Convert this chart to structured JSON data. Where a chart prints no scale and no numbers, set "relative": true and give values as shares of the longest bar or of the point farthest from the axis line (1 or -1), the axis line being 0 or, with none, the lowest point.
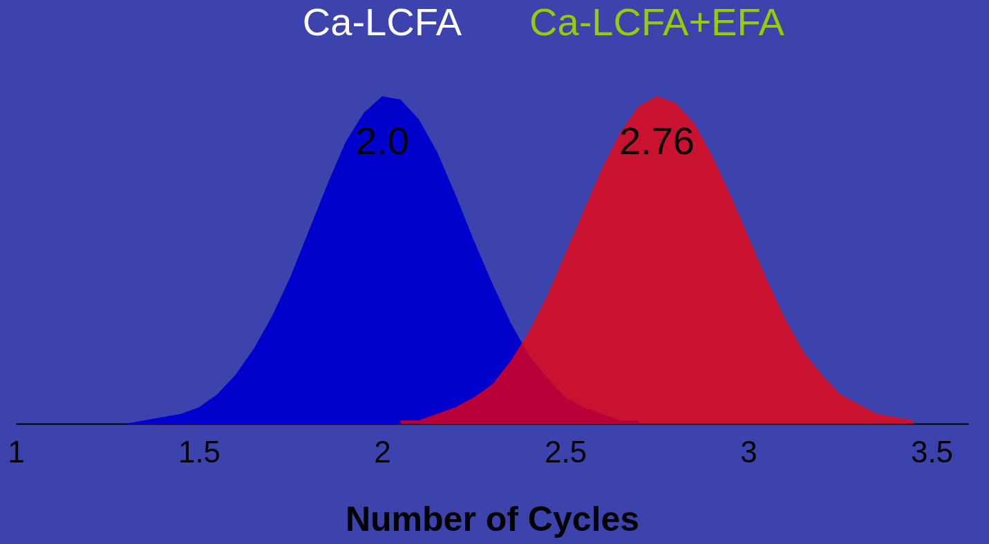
{
  "chart_data": {
    "type": "area",
    "relative": true,
    "xlabel": "Number of Cycles",
    "xlim": [
      1,
      3.6
    ],
    "xticks": [
      1,
      1.5,
      2,
      2.5,
      3,
      3.5
    ],
    "series": [
      {
        "name": "Ca-LCFA",
        "color": "#0000cc",
        "x": [
          1.25,
          1.3,
          1.35,
          1.4,
          1.45,
          1.5,
          1.55,
          1.6,
          1.65,
          1.7,
          1.75,
          1.8,
          1.85,
          1.9,
          1.95,
          2.0,
          2.05,
          2.1,
          2.15,
          2.2,
          2.25,
          2.3,
          2.35,
          2.4,
          2.45,
          2.5,
          2.55,
          2.6,
          2.65,
          2.7
        ],
        "values": [
          0.0,
          0.0,
          0.01,
          0.02,
          0.03,
          0.05,
          0.09,
          0.15,
          0.23,
          0.33,
          0.45,
          0.59,
          0.73,
          0.86,
          0.95,
          1.0,
          0.99,
          0.93,
          0.83,
          0.7,
          0.56,
          0.43,
          0.31,
          0.21,
          0.14,
          0.08,
          0.05,
          0.03,
          0.01,
          0.01
        ]
      },
      {
        "name": "Ca-LCFA+EFA",
        "color": "#ff0000",
        "x": [
          2.05,
          2.1,
          2.15,
          2.2,
          2.25,
          2.3,
          2.35,
          2.4,
          2.45,
          2.5,
          2.55,
          2.6,
          2.65,
          2.7,
          2.75,
          2.8,
          2.85,
          2.9,
          2.95,
          3.0,
          3.05,
          3.1,
          3.15,
          3.2,
          3.25,
          3.3,
          3.35,
          3.4,
          3.45
        ],
        "values": [
          0.01,
          0.01,
          0.03,
          0.05,
          0.08,
          0.12,
          0.19,
          0.28,
          0.39,
          0.52,
          0.65,
          0.78,
          0.89,
          0.97,
          1.0,
          0.98,
          0.92,
          0.82,
          0.7,
          0.57,
          0.44,
          0.32,
          0.22,
          0.15,
          0.09,
          0.06,
          0.03,
          0.02,
          0.01
        ]
      }
    ],
    "annotations": [
      "2.0",
      "2.76"
    ]
  }
}
